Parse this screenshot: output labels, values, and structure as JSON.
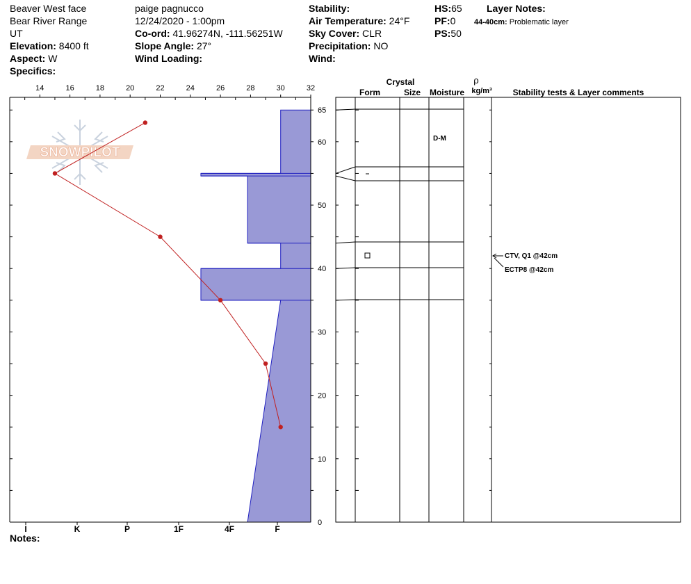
{
  "header": {
    "site": "Beaver West face",
    "range": "Bear River Range",
    "state": "UT",
    "elevation_label": "Elevation:",
    "elevation_value": "8400 ft",
    "aspect_label": "Aspect:",
    "aspect_value": "W",
    "specifics_label": "Specifics:",
    "observer": "paige pagnucco",
    "datetime": "12/24/2020 - 1:00pm",
    "coord_label": "Co-ord:",
    "coord_value": "41.96274N, -111.56251W",
    "slope_label": "Slope Angle:",
    "slope_value": "27°",
    "wind_loading_label": "Wind Loading:",
    "stability_label": "Stability:",
    "air_temp_label": "Air Temperature:",
    "air_temp_value": "24°F",
    "sky_label": "Sky Cover:",
    "sky_value": "CLR",
    "precip_label": "Precipitation:",
    "precip_value": "NO",
    "wind_label": "Wind:",
    "hs_label": "HS:",
    "hs_value": "65",
    "pf_label": "PF:",
    "pf_value": "0",
    "ps_label": "PS:",
    "ps_value": "50",
    "layer_notes_label": "Layer Notes:",
    "layer_note_range": "44-40cm:",
    "layer_note_text": "Problematic layer",
    "notes_label": "Notes:"
  },
  "logo_text": "SNOWPILOT",
  "colors": {
    "hardness_fill": "#9999d6",
    "hardness_stroke": "#2020c0",
    "temp_line": "#c02020",
    "logo": "#e8a080"
  },
  "chart_data": {
    "type": "line",
    "temp_axis": {
      "ticks": [
        14,
        16,
        18,
        20,
        22,
        24,
        26,
        28,
        30,
        32
      ],
      "range": [
        12,
        32
      ]
    },
    "depth_axis": {
      "ticks": [
        65,
        60,
        50,
        40,
        30,
        20,
        10,
        0
      ],
      "range": [
        0,
        67
      ]
    },
    "hardness_ticks": [
      "I",
      "K",
      "P",
      "1F",
      "4F",
      "F"
    ],
    "temperature_profile": [
      {
        "depth": 63,
        "temp": 21
      },
      {
        "depth": 55,
        "temp": 15
      },
      {
        "depth": 45,
        "temp": 22
      },
      {
        "depth": 35,
        "temp": 26
      },
      {
        "depth": 25,
        "temp": 29
      },
      {
        "depth": 15,
        "temp": 30
      }
    ],
    "hardness_profile": [
      {
        "top": 65,
        "bottom": 55,
        "temp_edge": 30
      },
      {
        "top": 55,
        "bottom": 54.6,
        "temp_edge": 24.7
      },
      {
        "top": 54.6,
        "bottom": 44,
        "temp_edge": 27.8
      },
      {
        "top": 44,
        "bottom": 40,
        "temp_edge": 30
      },
      {
        "top": 40,
        "bottom": 35,
        "temp_edge": 24.7
      },
      {
        "top": 35,
        "bottom": 0,
        "temp_edge_top": 30,
        "temp_edge_bottom": 27.8
      }
    ],
    "layer_table": {
      "headers": {
        "crystal": "Crystal",
        "form": "Form",
        "size": "Size",
        "moisture": "Moisture",
        "rho": "ρ",
        "rho_unit": "kg/m³",
        "stability": "Stability tests & Layer comments"
      },
      "layer_boundaries": [
        65,
        55,
        54.6,
        44,
        40,
        35
      ],
      "moisture_entries": [
        {
          "depth": 60.5,
          "text": "D-M"
        }
      ],
      "dash_depth": 54.8,
      "form_symbol_depth": 42,
      "stability_tests": [
        {
          "depth": 42,
          "text": "CTV, Q1 @42cm"
        },
        {
          "depth": 42,
          "text": "ECTP8 @42cm"
        }
      ]
    }
  }
}
